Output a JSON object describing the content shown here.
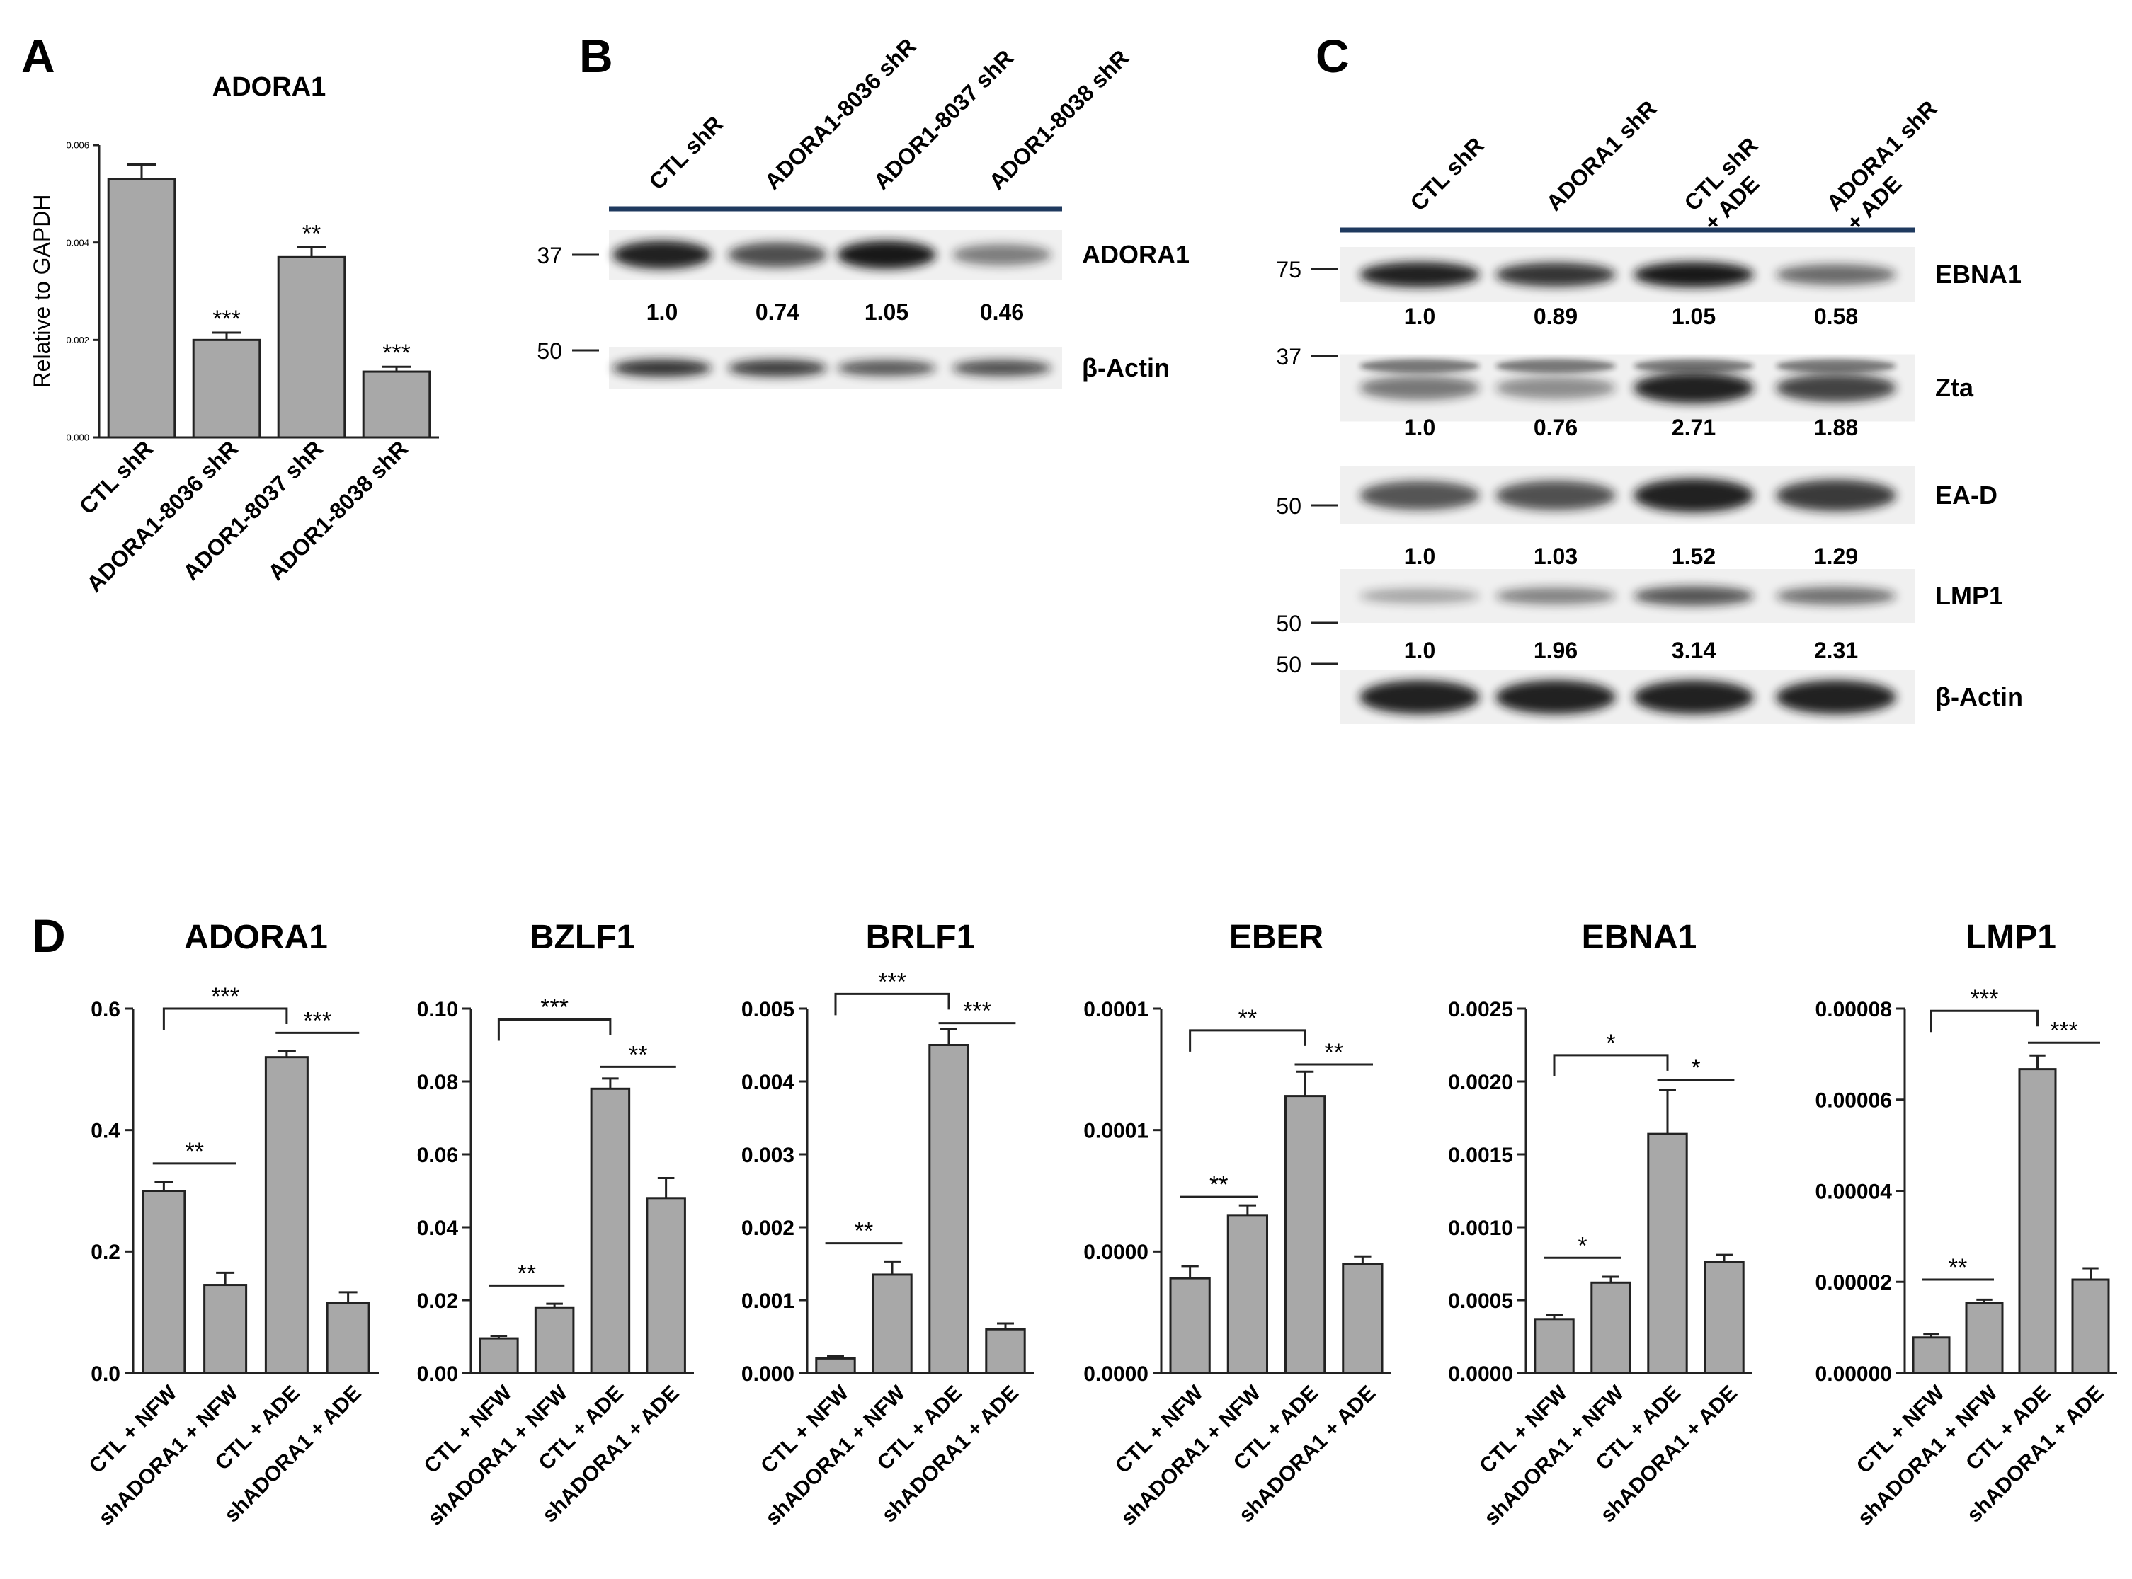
{
  "panel_a": {
    "letter": "A",
    "title": "ADORA1",
    "ylabel": "Relative to GAPDH"
  },
  "panel_b": {
    "letter": "B",
    "lanes": [
      "CTL shR",
      "ADORA1-8036 shR",
      "ADOR1-8037 shR",
      "ADOR1-8038 shR"
    ],
    "markers": [
      "37",
      "50"
    ],
    "rows": [
      {
        "label": "ADORA1",
        "quant": [
          "1.0",
          "0.74",
          "1.05",
          "0.46"
        ],
        "levels": [
          1.0,
          0.74,
          1.05,
          0.46
        ]
      },
      {
        "label": "β-Actin",
        "quant": [],
        "levels": [
          0.9,
          0.85,
          0.7,
          0.75
        ]
      }
    ]
  },
  "panel_c": {
    "letter": "C",
    "lanes": [
      [
        "CTL shR"
      ],
      [
        "ADORA1 shR"
      ],
      [
        "CTL shR",
        "+ ADE"
      ],
      [
        "ADORA1 shR",
        "+ ADE"
      ]
    ],
    "markers": [
      "75",
      "37",
      "50",
      "50",
      "50"
    ],
    "rows": [
      {
        "label": "EBNA1",
        "quant": [
          "1.0",
          "0.89",
          "1.05",
          "0.58"
        ],
        "levels": [
          1.0,
          0.89,
          1.05,
          0.58
        ]
      },
      {
        "label": "Zta",
        "quant": [
          "1.0",
          "0.76",
          "2.71",
          "1.88"
        ],
        "levels": [
          0.5,
          0.38,
          1.0,
          0.8
        ]
      },
      {
        "label": "EA-D",
        "quant": [
          "1.0",
          "1.03",
          "1.52",
          "1.29"
        ],
        "levels": [
          0.7,
          0.72,
          1.0,
          0.85
        ]
      },
      {
        "label": "LMP1",
        "quant": [
          "1.0",
          "1.96",
          "3.14",
          "2.31"
        ],
        "levels": [
          0.25,
          0.45,
          0.7,
          0.55
        ]
      },
      {
        "label": "β-Actin",
        "quant": [],
        "levels": [
          1.0,
          1.0,
          1.0,
          1.0
        ]
      }
    ]
  },
  "panel_d": {
    "letter": "D"
  },
  "chart_data": [
    {
      "id": "a",
      "type": "bar",
      "title": "ADORA1",
      "ylabel": "Relative to GAPDH",
      "categories": [
        "CTL shR",
        "ADORA1-8036 shR",
        "ADOR1-8037 shR",
        "ADOR1-8038 shR"
      ],
      "values": [
        0.0053,
        0.002,
        0.0037,
        0.00135
      ],
      "errors": [
        0.0003,
        0.00015,
        0.0002,
        0.0001
      ],
      "significance": [
        "",
        "***",
        "**",
        "***"
      ],
      "ylim": [
        0,
        0.006
      ],
      "yticks": [
        "0.000",
        "0.002",
        "0.004",
        "0.006"
      ]
    },
    {
      "id": "d1",
      "type": "bar",
      "title": "ADORA1",
      "categories": [
        "CTL + NFW",
        "shADORA1 + NFW",
        "CTL + ADE",
        "shADORA1 + ADE"
      ],
      "values": [
        0.3,
        0.145,
        0.52,
        0.115
      ],
      "errors": [
        0.015,
        0.02,
        0.01,
        0.018
      ],
      "ylim": [
        0,
        0.6
      ],
      "yticks": [
        "0.0",
        "0.2",
        "0.4",
        "0.6"
      ],
      "comparisons": [
        {
          "from": 0,
          "to": 1,
          "label": "**",
          "style": "line",
          "y": 0.345
        },
        {
          "from": 0,
          "to": 2,
          "label": "***",
          "style": "bracket",
          "y": 0.6
        },
        {
          "from": 2,
          "to": 3,
          "label": "***",
          "style": "line",
          "y": 0.56
        }
      ]
    },
    {
      "id": "d2",
      "type": "bar",
      "title": "BZLF1",
      "categories": [
        "CTL + NFW",
        "shADORA1 + NFW",
        "CTL + ADE",
        "shADORA1 + ADE"
      ],
      "values": [
        0.0095,
        0.018,
        0.078,
        0.048
      ],
      "errors": [
        0.0007,
        0.001,
        0.0028,
        0.0055
      ],
      "ylim": [
        0,
        0.1
      ],
      "yticks": [
        "0.00",
        "0.02",
        "0.04",
        "0.06",
        "0.08",
        "0.10"
      ],
      "comparisons": [
        {
          "from": 0,
          "to": 1,
          "label": "**",
          "style": "line",
          "y": 0.024
        },
        {
          "from": 0,
          "to": 2,
          "label": "***",
          "style": "bracket",
          "y": 0.097
        },
        {
          "from": 2,
          "to": 3,
          "label": "**",
          "style": "line",
          "y": 0.084
        }
      ]
    },
    {
      "id": "d3",
      "type": "bar",
      "title": "BRLF1",
      "categories": [
        "CTL + NFW",
        "shADORA1 + NFW",
        "CTL + ADE",
        "shADORA1 + ADE"
      ],
      "values": [
        0.0002,
        0.00135,
        0.0045,
        0.0006
      ],
      "errors": [
        3e-05,
        0.00018,
        0.00022,
        8e-05
      ],
      "ylim": [
        0,
        0.005
      ],
      "yticks": [
        "0.000",
        "0.001",
        "0.002",
        "0.003",
        "0.004",
        "0.005"
      ],
      "comparisons": [
        {
          "from": 0,
          "to": 1,
          "label": "**",
          "style": "line",
          "y": 0.00178
        },
        {
          "from": 0,
          "to": 2,
          "label": "***",
          "style": "bracket",
          "y": 0.0052
        },
        {
          "from": 2,
          "to": 3,
          "label": "***",
          "style": "line",
          "y": 0.0048
        }
      ]
    },
    {
      "id": "d4",
      "type": "bar",
      "title": "EBER",
      "categories": [
        "CTL + NFW",
        "shADORA1 + NFW",
        "CTL + ADE",
        "shADORA1 + ADE"
      ],
      "values": [
        3.9e-05,
        6.5e-05,
        0.000114,
        4.5e-05
      ],
      "errors": [
        5e-06,
        4e-06,
        1e-05,
        3e-06
      ],
      "ylim": [
        0,
        0.00015
      ],
      "ytick_values": [
        0,
        5e-05,
        0.0001,
        0.00015
      ],
      "yticks": [
        "0.0000",
        "0.0000",
        "0.0001",
        "0.0001"
      ],
      "comparisons": [
        {
          "from": 0,
          "to": 1,
          "label": "**",
          "style": "line",
          "y": 7.25e-05
        },
        {
          "from": 0,
          "to": 2,
          "label": "**",
          "style": "bracket",
          "y": 0.000141
        },
        {
          "from": 2,
          "to": 3,
          "label": "**",
          "style": "line",
          "y": 0.000127
        }
      ]
    },
    {
      "id": "d5",
      "type": "bar",
      "title": "EBNA1",
      "categories": [
        "CTL + NFW",
        "shADORA1 + NFW",
        "CTL + ADE",
        "shADORA1 + ADE"
      ],
      "values": [
        0.00037,
        0.00062,
        0.00164,
        0.00076
      ],
      "errors": [
        3e-05,
        4e-05,
        0.0003,
        5e-05
      ],
      "ylim": [
        0,
        0.0025
      ],
      "yticks": [
        "0.0000",
        "0.0005",
        "0.0010",
        "0.0015",
        "0.0020",
        "0.0025"
      ],
      "comparisons": [
        {
          "from": 0,
          "to": 1,
          "label": "*",
          "style": "line",
          "y": 0.00079
        },
        {
          "from": 0,
          "to": 2,
          "label": "*",
          "style": "bracket",
          "y": 0.00218
        },
        {
          "from": 2,
          "to": 3,
          "label": "*",
          "style": "line",
          "y": 0.00201
        }
      ]
    },
    {
      "id": "d6",
      "type": "bar",
      "title": "LMP1",
      "categories": [
        "CTL + NFW",
        "shADORA1 + NFW",
        "CTL + ADE",
        "shADORA1 + ADE"
      ],
      "values": [
        7.8e-06,
        1.53e-05,
        6.67e-05,
        2.05e-05
      ],
      "errors": [
        8e-07,
        8e-07,
        3e-06,
        2.5e-06
      ],
      "ylim": [
        0,
        8e-05
      ],
      "yticks": [
        "0.00000",
        "0.00002",
        "0.00004",
        "0.00006",
        "0.00008"
      ],
      "comparisons": [
        {
          "from": 0,
          "to": 1,
          "label": "**",
          "style": "line",
          "y": 2.05e-05
        },
        {
          "from": 0,
          "to": 2,
          "label": "***",
          "style": "bracket",
          "y": 7.95e-05
        },
        {
          "from": 2,
          "to": 3,
          "label": "***",
          "style": "line",
          "y": 7.25e-05
        }
      ]
    }
  ]
}
